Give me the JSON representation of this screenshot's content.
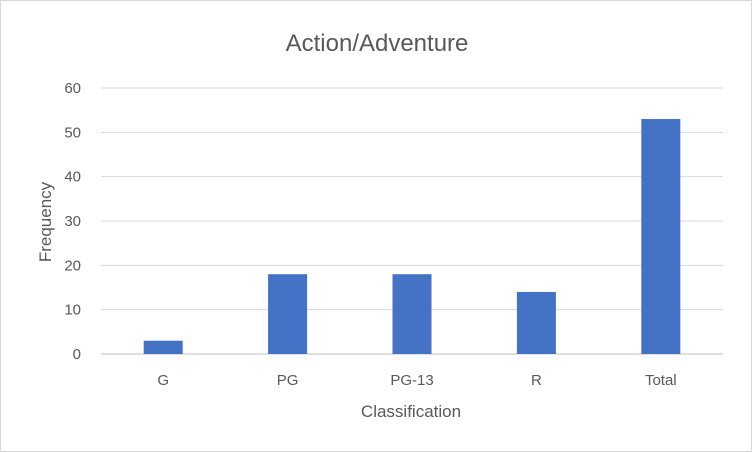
{
  "chart_data": {
    "type": "bar",
    "title": "Action/Adventure",
    "xlabel": "Classification",
    "ylabel": "Frequency",
    "categories": [
      "G",
      "PG",
      "PG-13",
      "R",
      "Total"
    ],
    "values": [
      3,
      18,
      18,
      14,
      53
    ],
    "ylim": [
      0,
      60
    ],
    "yticks": [
      0,
      10,
      20,
      30,
      40,
      50,
      60
    ],
    "grid": true,
    "legend": "none",
    "bar_color": "#4472C4"
  }
}
